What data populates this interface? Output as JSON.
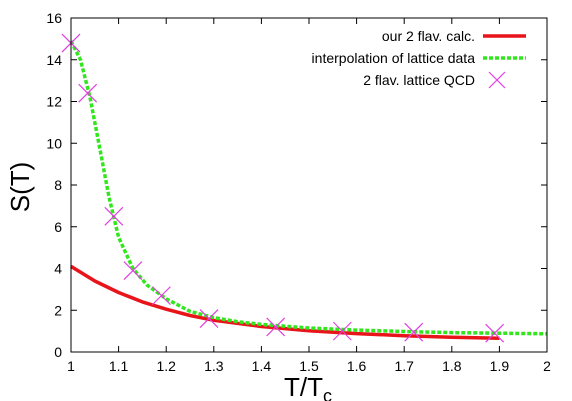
{
  "chart_data": {
    "type": "line",
    "xlabel": "T/T",
    "xlabel_sub": "c",
    "ylabel": "S(T)",
    "xlim": [
      1.0,
      2.0
    ],
    "ylim": [
      0,
      16
    ],
    "x_ticks": [
      "1",
      "1.1",
      "1.2",
      "1.3",
      "1.4",
      "1.5",
      "1.6",
      "1.7",
      "1.8",
      "1.9",
      "2"
    ],
    "y_ticks": [
      "0",
      "2",
      "4",
      "6",
      "8",
      "10",
      "12",
      "14",
      "16"
    ],
    "legend_position": "top-right",
    "series": [
      {
        "name": "our 2 flav. calc.",
        "style": "solid",
        "color": "#e8141a",
        "points": [
          [
            1.0,
            4.1
          ],
          [
            1.05,
            3.4
          ],
          [
            1.1,
            2.85
          ],
          [
            1.15,
            2.4
          ],
          [
            1.2,
            2.05
          ],
          [
            1.25,
            1.75
          ],
          [
            1.3,
            1.52
          ],
          [
            1.4,
            1.22
          ],
          [
            1.5,
            1.02
          ],
          [
            1.6,
            0.88
          ],
          [
            1.7,
            0.78
          ],
          [
            1.8,
            0.71
          ],
          [
            1.9,
            0.66
          ]
        ]
      },
      {
        "name": "interpolation of lattice data",
        "style": "dashed",
        "color": "#32e61e",
        "points": [
          [
            1.0,
            14.9
          ],
          [
            1.02,
            14.0
          ],
          [
            1.04,
            12.2
          ],
          [
            1.06,
            9.8
          ],
          [
            1.08,
            7.4
          ],
          [
            1.1,
            5.5
          ],
          [
            1.13,
            4.0
          ],
          [
            1.16,
            3.2
          ],
          [
            1.2,
            2.55
          ],
          [
            1.25,
            1.95
          ],
          [
            1.3,
            1.65
          ],
          [
            1.35,
            1.45
          ],
          [
            1.4,
            1.32
          ],
          [
            1.5,
            1.15
          ],
          [
            1.6,
            1.05
          ],
          [
            1.7,
            0.98
          ],
          [
            1.8,
            0.93
          ],
          [
            1.9,
            0.9
          ],
          [
            2.0,
            0.87
          ]
        ]
      },
      {
        "name": "2 flav. lattice QCD",
        "style": "markers",
        "color": "#e040e0",
        "points": [
          [
            1.0,
            14.8
          ],
          [
            1.035,
            12.4
          ],
          [
            1.09,
            6.5
          ],
          [
            1.13,
            3.9
          ],
          [
            1.19,
            2.7
          ],
          [
            1.29,
            1.6
          ],
          [
            1.43,
            1.2
          ],
          [
            1.57,
            1.0
          ],
          [
            1.72,
            0.95
          ],
          [
            1.89,
            0.9
          ]
        ]
      }
    ]
  }
}
